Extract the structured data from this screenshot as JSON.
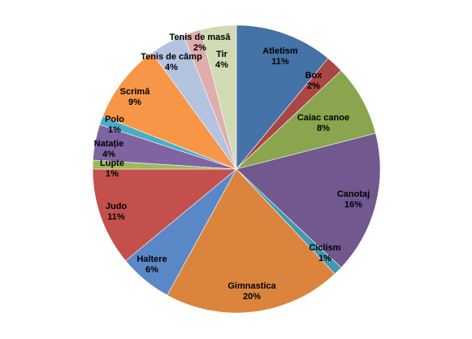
{
  "chart_data": {
    "type": "pie",
    "start_angle_deg": 0,
    "direction": "clockwise",
    "legend": "none",
    "slices": [
      {
        "label": "Atletism",
        "value": 11,
        "value_label": "11%",
        "color": "#4572a7"
      },
      {
        "label": "Box",
        "value": 2,
        "value_label": "2%",
        "color": "#aa4643"
      },
      {
        "label": "Caiac canoe",
        "value": 8,
        "value_label": "8%",
        "color": "#89a54e"
      },
      {
        "label": "Canotaj",
        "value": 16,
        "value_label": "16%",
        "color": "#71588f"
      },
      {
        "label": "Ciclism",
        "value": 1,
        "value_label": "1%",
        "color": "#4198af"
      },
      {
        "label": "Gimnastica",
        "value": 20,
        "value_label": "20%",
        "color": "#db843d"
      },
      {
        "label": "Haltere",
        "value": 6,
        "value_label": "6%",
        "color": "#5a88c6"
      },
      {
        "label": "Judo",
        "value": 11,
        "value_label": "11%",
        "color": "#c4504d"
      },
      {
        "label": "Lupte",
        "value": 1,
        "value_label": "1%",
        "color": "#9bbb59"
      },
      {
        "label": "Natație",
        "value": 4,
        "value_label": "4%",
        "color": "#8064a2"
      },
      {
        "label": "Polo",
        "value": 1,
        "value_label": "1%",
        "color": "#4bacc6"
      },
      {
        "label": "Scrimă",
        "value": 9,
        "value_label": "9%",
        "color": "#f79646"
      },
      {
        "label": "Tenis de câmp",
        "value": 4,
        "value_label": "4%",
        "color": "#b3c3e0"
      },
      {
        "label": "Tenis de masă",
        "value": 2,
        "value_label": "2%",
        "color": "#dfadab"
      },
      {
        "label": "Tir",
        "value": 4,
        "value_label": "4%",
        "color": "#d0dbb4"
      }
    ]
  }
}
